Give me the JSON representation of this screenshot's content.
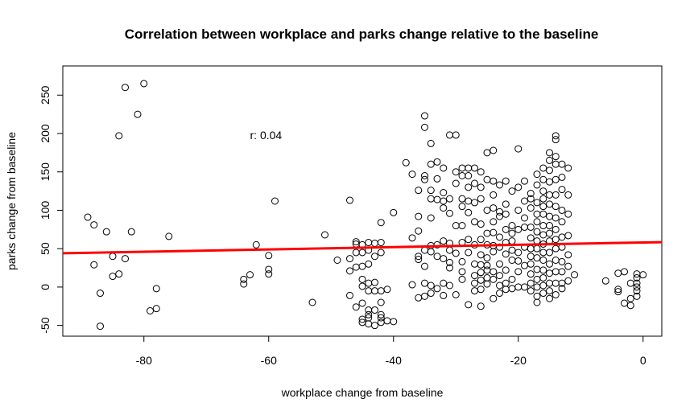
{
  "chart_data": {
    "type": "scatter",
    "title": "Correlation between workplace and parks change relative to the baseline",
    "xlabel": "workplace change from baseline",
    "ylabel": "parks change from baseline",
    "xlim": [
      -93,
      3
    ],
    "ylim": [
      -64,
      288
    ],
    "xticks": [
      -80,
      -60,
      -40,
      -20,
      0
    ],
    "yticks": [
      -50,
      0,
      50,
      100,
      150,
      200,
      250
    ],
    "grid": false,
    "annotation": {
      "text": "r: 0.04",
      "x": -63,
      "y": 198
    },
    "regression_line": {
      "color": "#ff0000",
      "x": [
        -93,
        3
      ],
      "y": [
        44,
        58.5
      ]
    },
    "points": [
      [
        -89,
        91
      ],
      [
        -88,
        81
      ],
      [
        -88,
        29
      ],
      [
        -87,
        -8
      ],
      [
        -87,
        -51
      ],
      [
        -86,
        72
      ],
      [
        -85,
        40
      ],
      [
        -85,
        14
      ],
      [
        -84,
        17
      ],
      [
        -84,
        197
      ],
      [
        -83,
        37
      ],
      [
        -83,
        260
      ],
      [
        -82,
        72
      ],
      [
        -81,
        225
      ],
      [
        -80,
        265
      ],
      [
        -79,
        -31
      ],
      [
        -78,
        -28
      ],
      [
        -78,
        -2
      ],
      [
        -76,
        66
      ],
      [
        -64,
        10
      ],
      [
        -64,
        4
      ],
      [
        -63,
        16
      ],
      [
        -62,
        55
      ],
      [
        -60,
        41
      ],
      [
        -60,
        23
      ],
      [
        -60,
        17
      ],
      [
        -59,
        112
      ],
      [
        -53,
        -20
      ],
      [
        -51,
        68
      ],
      [
        -49,
        35
      ],
      [
        -47,
        113
      ],
      [
        -47,
        37
      ],
      [
        -47,
        21
      ],
      [
        -47,
        -11
      ],
      [
        -46,
        59
      ],
      [
        -46,
        56
      ],
      [
        -46,
        45
      ],
      [
        -46,
        26
      ],
      [
        -46,
        -26
      ],
      [
        -45,
        55
      ],
      [
        -45,
        45
      ],
      [
        -45,
        27
      ],
      [
        -45,
        10
      ],
      [
        -45,
        1
      ],
      [
        -45,
        -21
      ],
      [
        -45,
        -42
      ],
      [
        -45,
        -46
      ],
      [
        -44,
        58
      ],
      [
        -44,
        48
      ],
      [
        -44,
        30
      ],
      [
        -44,
        5
      ],
      [
        -44,
        -5
      ],
      [
        -44,
        -30
      ],
      [
        -44,
        -36
      ],
      [
        -44,
        -40
      ],
      [
        -44,
        -48
      ],
      [
        -43,
        57
      ],
      [
        -43,
        40
      ],
      [
        -43,
        6
      ],
      [
        -43,
        -5
      ],
      [
        -43,
        -30
      ],
      [
        -43,
        -50
      ],
      [
        -42,
        84
      ],
      [
        -42,
        58
      ],
      [
        -42,
        45
      ],
      [
        -42,
        -5
      ],
      [
        -42,
        -20
      ],
      [
        -42,
        -36
      ],
      [
        -42,
        -40
      ],
      [
        -42,
        -46
      ],
      [
        -41,
        -3
      ],
      [
        -41,
        -44
      ],
      [
        -40,
        97
      ],
      [
        -40,
        -45
      ],
      [
        -38,
        162
      ],
      [
        -37,
        147
      ],
      [
        -37,
        64
      ],
      [
        -37,
        3
      ],
      [
        -36,
        126
      ],
      [
        -36,
        92
      ],
      [
        -36,
        73
      ],
      [
        -36,
        40
      ],
      [
        -36,
        36
      ],
      [
        -36,
        -14
      ],
      [
        -35,
        223
      ],
      [
        -35,
        208
      ],
      [
        -35,
        145
      ],
      [
        -35,
        140
      ],
      [
        -35,
        48
      ],
      [
        -35,
        27
      ],
      [
        -35,
        5
      ],
      [
        -35,
        -12
      ],
      [
        -34,
        187
      ],
      [
        -34,
        160
      ],
      [
        -34,
        126
      ],
      [
        -34,
        115
      ],
      [
        -34,
        90
      ],
      [
        -34,
        54
      ],
      [
        -34,
        46
      ],
      [
        -34,
        2
      ],
      [
        -34,
        -8
      ],
      [
        -33,
        163
      ],
      [
        -33,
        141
      ],
      [
        -33,
        114
      ],
      [
        -33,
        55
      ],
      [
        -33,
        40
      ],
      [
        -33,
        -2
      ],
      [
        -32,
        155
      ],
      [
        -32,
        123
      ],
      [
        -32,
        112
      ],
      [
        -32,
        103
      ],
      [
        -32,
        60
      ],
      [
        -32,
        37
      ],
      [
        -32,
        5
      ],
      [
        -32,
        -11
      ],
      [
        -31,
        198
      ],
      [
        -31,
        115
      ],
      [
        -31,
        96
      ],
      [
        -31,
        57
      ],
      [
        -31,
        48
      ],
      [
        -31,
        32
      ],
      [
        -31,
        25
      ],
      [
        -31,
        2
      ],
      [
        -30,
        198
      ],
      [
        -30,
        150
      ],
      [
        -30,
        135
      ],
      [
        -30,
        80
      ],
      [
        -30,
        44
      ],
      [
        -30,
        -10
      ],
      [
        -29,
        155
      ],
      [
        -29,
        145
      ],
      [
        -29,
        115
      ],
      [
        -29,
        105
      ],
      [
        -29,
        80
      ],
      [
        -29,
        58
      ],
      [
        -29,
        33
      ],
      [
        -29,
        20
      ],
      [
        -29,
        10
      ],
      [
        -28,
        155
      ],
      [
        -28,
        145
      ],
      [
        -28,
        130
      ],
      [
        -28,
        112
      ],
      [
        -28,
        97
      ],
      [
        -28,
        62
      ],
      [
        -28,
        45
      ],
      [
        -28,
        -23
      ],
      [
        -27,
        155
      ],
      [
        -27,
        135
      ],
      [
        -27,
        110
      ],
      [
        -27,
        85
      ],
      [
        -27,
        55
      ],
      [
        -27,
        30
      ],
      [
        -27,
        15
      ],
      [
        -27,
        5
      ],
      [
        -27,
        -5
      ],
      [
        -26,
        150
      ],
      [
        -26,
        130
      ],
      [
        -26,
        115
      ],
      [
        -26,
        82
      ],
      [
        -26,
        62
      ],
      [
        -26,
        42
      ],
      [
        -26,
        29
      ],
      [
        -26,
        19
      ],
      [
        -26,
        9
      ],
      [
        -26,
        -3
      ],
      [
        -26,
        -25
      ],
      [
        -25,
        175
      ],
      [
        -25,
        140
      ],
      [
        -25,
        100
      ],
      [
        -25,
        70
      ],
      [
        -25,
        55
      ],
      [
        -25,
        38
      ],
      [
        -25,
        28
      ],
      [
        -25,
        22
      ],
      [
        -25,
        12
      ],
      [
        -25,
        4
      ],
      [
        -24,
        178
      ],
      [
        -24,
        138
      ],
      [
        -24,
        120
      ],
      [
        -24,
        103
      ],
      [
        -24,
        85
      ],
      [
        -24,
        71
      ],
      [
        -24,
        54
      ],
      [
        -24,
        46
      ],
      [
        -24,
        20
      ],
      [
        -24,
        10
      ],
      [
        -24,
        -15
      ],
      [
        -23,
        133
      ],
      [
        -23,
        98
      ],
      [
        -23,
        92
      ],
      [
        -23,
        65
      ],
      [
        -23,
        52
      ],
      [
        -23,
        30
      ],
      [
        -23,
        15
      ],
      [
        -23,
        2
      ],
      [
        -23,
        -8
      ],
      [
        -22,
        138
      ],
      [
        -22,
        108
      ],
      [
        -22,
        95
      ],
      [
        -22,
        75
      ],
      [
        -22,
        58
      ],
      [
        -22,
        43
      ],
      [
        -22,
        22
      ],
      [
        -22,
        5
      ],
      [
        -22,
        -3
      ],
      [
        -21,
        125
      ],
      [
        -21,
        80
      ],
      [
        -21,
        70
      ],
      [
        -21,
        60
      ],
      [
        -21,
        48
      ],
      [
        -21,
        35
      ],
      [
        -21,
        10
      ],
      [
        -21,
        -2
      ],
      [
        -20,
        180
      ],
      [
        -20,
        130
      ],
      [
        -20,
        100
      ],
      [
        -20,
        75
      ],
      [
        -20,
        45
      ],
      [
        -20,
        34
      ],
      [
        -20,
        20
      ],
      [
        -20,
        0
      ],
      [
        -19,
        138
      ],
      [
        -19,
        112
      ],
      [
        -19,
        90
      ],
      [
        -19,
        78
      ],
      [
        -19,
        52
      ],
      [
        -19,
        28
      ],
      [
        -19,
        0
      ],
      [
        -18,
        122
      ],
      [
        -18,
        115
      ],
      [
        -18,
        103
      ],
      [
        -18,
        78
      ],
      [
        -18,
        64
      ],
      [
        -18,
        50
      ],
      [
        -18,
        40
      ],
      [
        -18,
        30
      ],
      [
        -18,
        17
      ],
      [
        -18,
        5
      ],
      [
        -18,
        -5
      ],
      [
        -17,
        147
      ],
      [
        -17,
        133
      ],
      [
        -17,
        110
      ],
      [
        -17,
        95
      ],
      [
        -17,
        85
      ],
      [
        -17,
        72
      ],
      [
        -17,
        60
      ],
      [
        -17,
        50
      ],
      [
        -17,
        38
      ],
      [
        -17,
        23
      ],
      [
        -17,
        10
      ],
      [
        -17,
        0
      ],
      [
        -17,
        -12
      ],
      [
        -17,
        -20
      ],
      [
        -16,
        155
      ],
      [
        -16,
        140
      ],
      [
        -16,
        125
      ],
      [
        -16,
        115
      ],
      [
        -16,
        105
      ],
      [
        -16,
        95
      ],
      [
        -16,
        80
      ],
      [
        -16,
        68
      ],
      [
        -16,
        56
      ],
      [
        -16,
        45
      ],
      [
        -16,
        35
      ],
      [
        -16,
        22
      ],
      [
        -16,
        12
      ],
      [
        -16,
        2
      ],
      [
        -16,
        -8
      ],
      [
        -15,
        175
      ],
      [
        -15,
        165
      ],
      [
        -15,
        152
      ],
      [
        -15,
        137
      ],
      [
        -15,
        120
      ],
      [
        -15,
        108
      ],
      [
        -15,
        92
      ],
      [
        -15,
        80
      ],
      [
        -15,
        70
      ],
      [
        -15,
        60
      ],
      [
        -15,
        45
      ],
      [
        -15,
        30
      ],
      [
        -15,
        18
      ],
      [
        -15,
        5
      ],
      [
        -15,
        -5
      ],
      [
        -15,
        -15
      ],
      [
        -14,
        197
      ],
      [
        -14,
        192
      ],
      [
        -14,
        170
      ],
      [
        -14,
        160
      ],
      [
        -14,
        140
      ],
      [
        -14,
        120
      ],
      [
        -14,
        105
      ],
      [
        -14,
        90
      ],
      [
        -14,
        75
      ],
      [
        -14,
        62
      ],
      [
        -14,
        50
      ],
      [
        -14,
        35
      ],
      [
        -14,
        20
      ],
      [
        -14,
        5
      ],
      [
        -14,
        -10
      ],
      [
        -13,
        160
      ],
      [
        -13,
        143
      ],
      [
        -13,
        127
      ],
      [
        -13,
        100
      ],
      [
        -13,
        85
      ],
      [
        -13,
        65
      ],
      [
        -13,
        52
      ],
      [
        -13,
        33
      ],
      [
        -13,
        20
      ],
      [
        -13,
        5
      ],
      [
        -13,
        -2
      ],
      [
        -12,
        155
      ],
      [
        -12,
        120
      ],
      [
        -12,
        95
      ],
      [
        -12,
        67
      ],
      [
        -12,
        42
      ],
      [
        -12,
        27
      ],
      [
        -12,
        8
      ],
      [
        -11,
        16
      ],
      [
        -6,
        8
      ],
      [
        -4,
        18
      ],
      [
        -4,
        -3
      ],
      [
        -4,
        -6
      ],
      [
        -3,
        20
      ],
      [
        -3,
        -21
      ],
      [
        -2,
        5
      ],
      [
        -2,
        -15
      ],
      [
        -2,
        -24
      ],
      [
        -1,
        17
      ],
      [
        -1,
        12
      ],
      [
        -1,
        5
      ],
      [
        -1,
        0
      ],
      [
        -1,
        -5
      ],
      [
        -1,
        -12
      ],
      [
        0,
        16
      ]
    ]
  }
}
